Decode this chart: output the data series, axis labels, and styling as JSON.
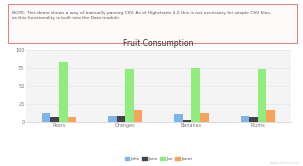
{
  "title": "Fruit Consumption",
  "categories": [
    "Pears",
    "Oranges",
    "Bananas",
    "Plums"
  ],
  "series": [
    {
      "name": "John",
      "color": "#7cb5ec",
      "values": [
        12,
        9,
        11,
        9
      ]
    },
    {
      "name": "Jane",
      "color": "#434348",
      "values": [
        7,
        9,
        3,
        7
      ]
    },
    {
      "name": "Joe",
      "color": "#90ed7d",
      "values": [
        83,
        73,
        75,
        74
      ]
    },
    {
      "name": "Janet",
      "color": "#f7a35c",
      "values": [
        7,
        16,
        13,
        16
      ]
    }
  ],
  "ylim": [
    0,
    100
  ],
  "yticks": [
    0,
    25,
    50,
    75,
    100
  ],
  "note_text": "NOTE: This demo shows a way of manually parsing CSV. As of Highcharts 4.0 this is not necessary for simple CSV files,\nas this functionality is built into the Data module.",
  "bg_color": "#ffffff",
  "plot_bg": "#f4f4f4",
  "grid_color": "#e6e6e6",
  "axis_color": "#cccccc",
  "watermark": "highcharts.com"
}
